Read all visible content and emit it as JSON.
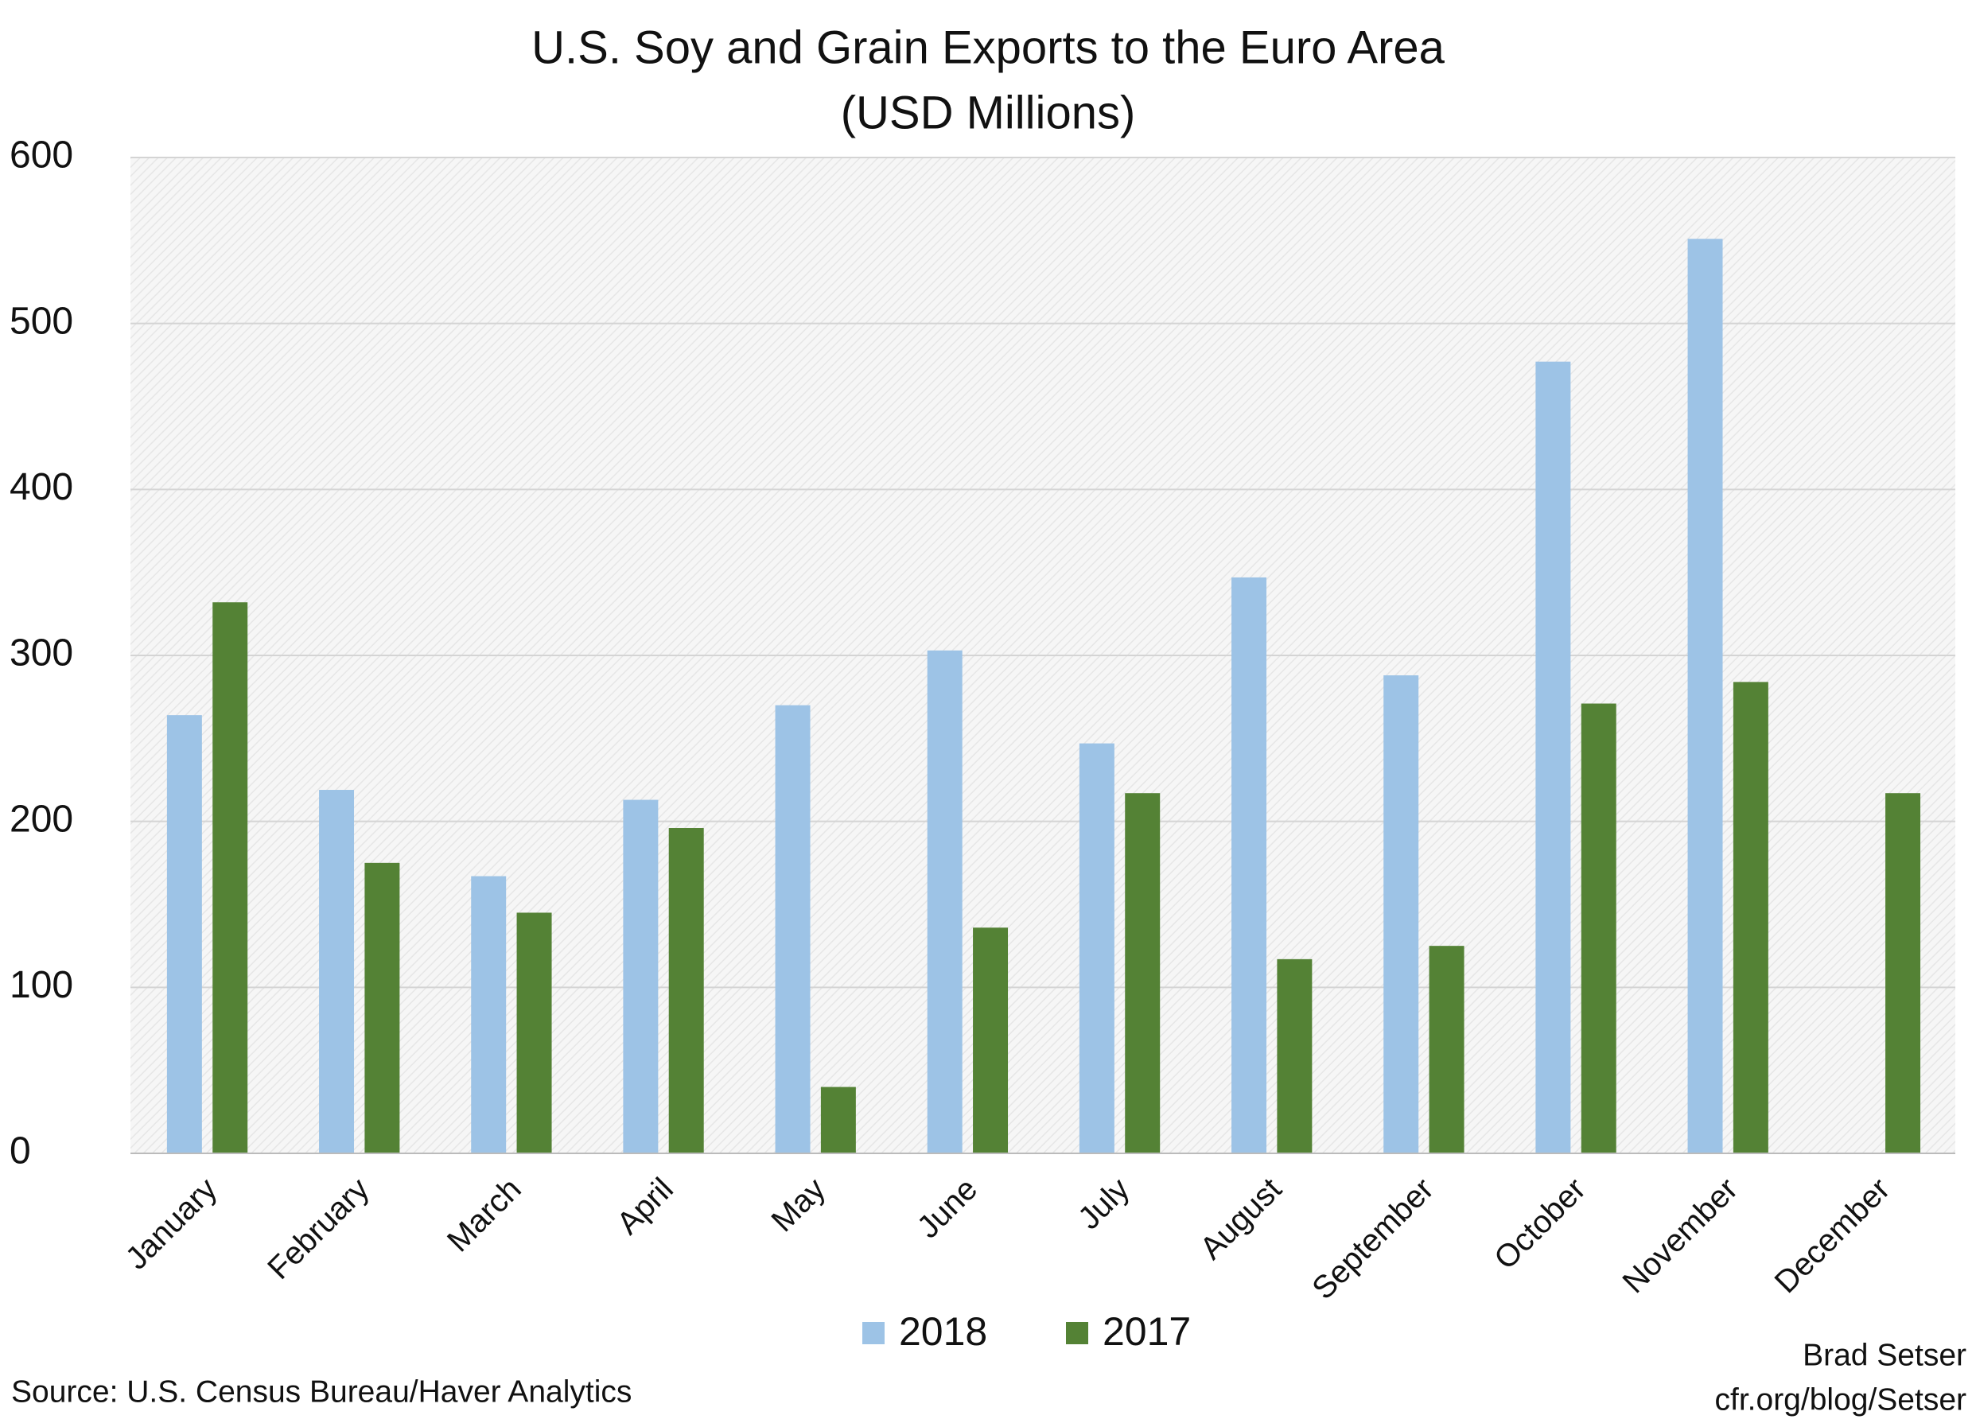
{
  "chart_data": {
    "type": "bar",
    "title": "U.S. Soy and Grain Exports to the Euro Area",
    "subtitle": "(USD Millions)",
    "categories": [
      "January",
      "February",
      "March",
      "April",
      "May",
      "June",
      "July",
      "August",
      "September",
      "October",
      "November",
      "December"
    ],
    "series": [
      {
        "name": "2018",
        "color": "#9dc3e6",
        "values": [
          264,
          219,
          167,
          213,
          270,
          303,
          247,
          347,
          288,
          477,
          551,
          null
        ]
      },
      {
        "name": "2017",
        "color": "#548235",
        "values": [
          332,
          175,
          145,
          196,
          40,
          136,
          217,
          117,
          125,
          271,
          284,
          217
        ]
      }
    ],
    "ylim": [
      0,
      600
    ],
    "yticks": [
      0,
      100,
      200,
      300,
      400,
      500,
      600
    ],
    "grid": true,
    "source": "Source: U.S. Census Bureau/Haver Analytics",
    "credit": [
      "Brad Setser",
      "cfr.org/blog/Setser"
    ]
  }
}
